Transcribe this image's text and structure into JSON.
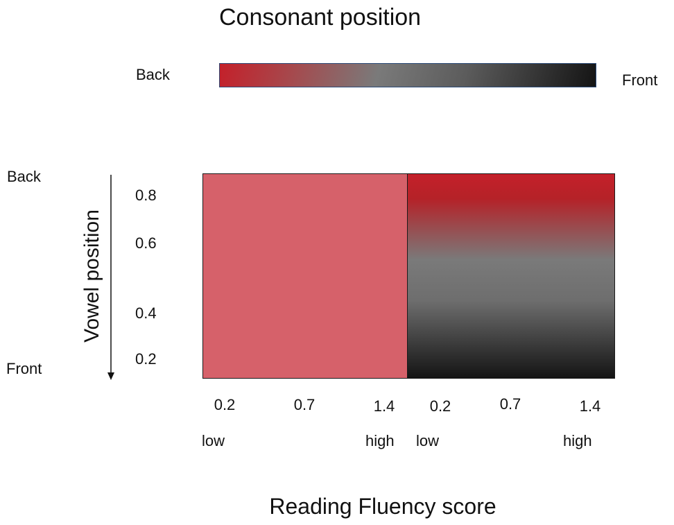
{
  "colors": {
    "back": "#c4202a",
    "middle": "#7a7a7a",
    "front": "#141414",
    "low_fluency_fill": "#d6616a"
  },
  "consonant_scale": {
    "title": "Consonant position",
    "back_label": "Back",
    "front_label": "Front"
  },
  "chart_data": {
    "type": "heatmap",
    "xlabel": "Reading Fluency score",
    "ylabel": "Vowel position",
    "y_end_labels": {
      "top": "Back",
      "bottom": "Front"
    },
    "y_ticks": [
      "0.8",
      "0.6",
      "0.4",
      "0.2"
    ],
    "panels": [
      {
        "x_ticks": [
          "0.2",
          "0.7",
          "1.4"
        ],
        "x_low_label": "low",
        "x_high_label": "high",
        "fill": "uniform",
        "color": "#d6616a"
      },
      {
        "x_ticks": [
          "0.2",
          "0.7",
          "1.4"
        ],
        "x_low_label": "low",
        "x_high_label": "high",
        "fill": "vertical gradient from back (top) to front (bottom)",
        "color_stops": [
          "#c4202a",
          "#b52228",
          "#7a7a7a",
          "#6e6e6e",
          "#141414"
        ]
      }
    ]
  }
}
